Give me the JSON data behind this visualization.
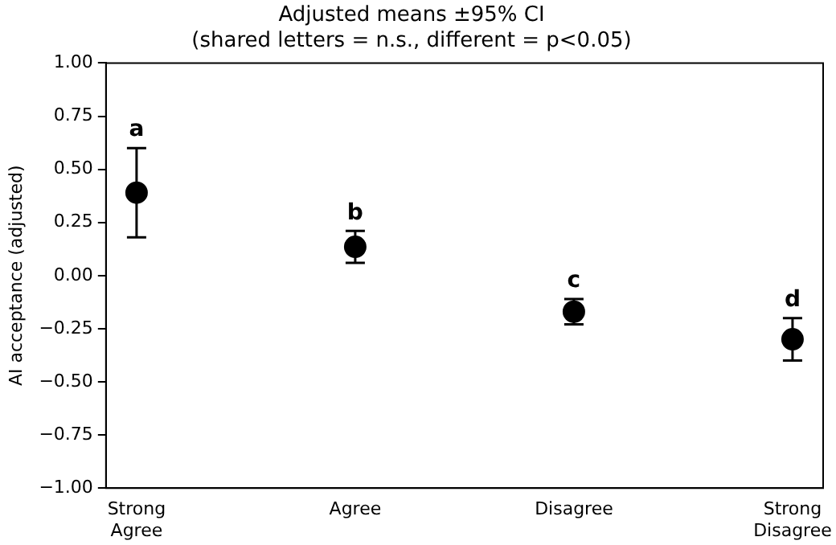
{
  "chart_data": {
    "type": "scatter",
    "title": "Adjusted means ±95% CI",
    "subtitle": "(shared letters = n.s., different = p<0.05)",
    "ylabel": "AI acceptance (adjusted)",
    "categories": [
      "Strong Agree",
      "Agree",
      "Disagree",
      "Strong Disagree"
    ],
    "values": [
      0.39,
      0.135,
      -0.17,
      -0.3
    ],
    "errors": [
      [
        0.18,
        0.6
      ],
      [
        0.06,
        0.21
      ],
      [
        -0.23,
        -0.11
      ],
      [
        -0.4,
        -0.2
      ]
    ],
    "color": "#000000",
    "marker": "circle",
    "grid": false,
    "legend": false,
    "ylim": [
      -1.0,
      1.0
    ],
    "yticks": [
      {
        "value": -1,
        "label": "−1.00"
      },
      {
        "value": -0.75,
        "label": "−0.75"
      },
      {
        "value": -0.5,
        "label": "−0.50"
      },
      {
        "value": -0.25,
        "label": "−0.25"
      },
      {
        "value": 0,
        "label": "0.00"
      },
      {
        "value": 0.25,
        "label": "0.25"
      },
      {
        "value": 0.5,
        "label": "0.50"
      },
      {
        "value": 0.75,
        "label": "0.75"
      },
      {
        "value": 1,
        "label": "1.00"
      }
    ],
    "annotations": [
      {
        "text": "a",
        "x": "Strong Agree",
        "y": 0.6
      },
      {
        "text": "b",
        "x": "Agree",
        "y": 0.21
      },
      {
        "text": "c",
        "x": "Disagree",
        "y": -0.11
      },
      {
        "text": "d",
        "x": "Strong Disagree",
        "y": -0.2
      }
    ]
  }
}
